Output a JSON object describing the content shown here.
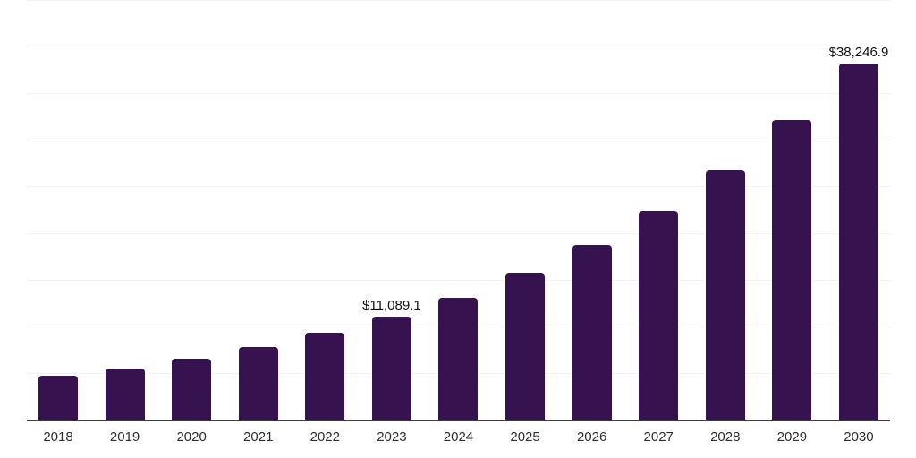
{
  "chart_data": {
    "type": "bar",
    "categories": [
      "2018",
      "2019",
      "2020",
      "2021",
      "2022",
      "2023",
      "2024",
      "2025",
      "2026",
      "2027",
      "2028",
      "2029",
      "2030"
    ],
    "values": [
      4800,
      5600,
      6620,
      7900,
      9380,
      11089.1,
      13170,
      15800,
      18820,
      22420,
      26890,
      32250,
      38246.9
    ],
    "annotations": [
      {
        "index": 5,
        "text": "$11,089.1"
      },
      {
        "index": 12,
        "text": "$38,246.9"
      }
    ],
    "ylim": [
      0,
      45000
    ],
    "gridline_step": 5000,
    "grid": "horizontal",
    "legend_position": "none",
    "bar_color": "#36134E",
    "gridline_color": "#f3f3f3",
    "axis_line_color": "#3c3c3c",
    "value_label_color": "#111111",
    "tick_label_color": "#2e2e2e"
  }
}
